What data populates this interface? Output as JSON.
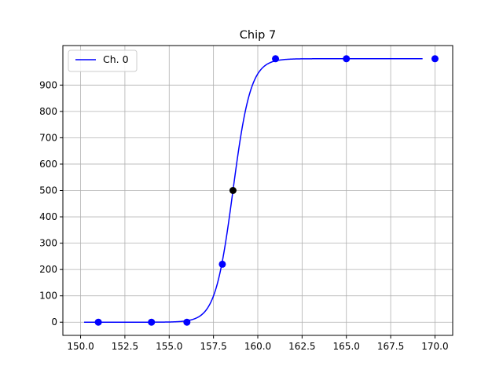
{
  "chart_data": {
    "type": "line",
    "title": "Chip 7",
    "xlabel": "",
    "ylabel": "",
    "xlim": [
      149.0,
      171.0
    ],
    "ylim": [
      -50,
      1050
    ],
    "xticks": [
      150.0,
      152.5,
      155.0,
      157.5,
      160.0,
      162.5,
      165.0,
      167.5,
      170.0
    ],
    "xtick_labels": [
      "150.0",
      "152.5",
      "155.0",
      "157.5",
      "160.0",
      "162.5",
      "165.0",
      "167.5",
      "170.0"
    ],
    "yticks": [
      0,
      100,
      200,
      300,
      400,
      500,
      600,
      700,
      800,
      900
    ],
    "ytick_labels": [
      "0",
      "100",
      "200",
      "300",
      "400",
      "500",
      "600",
      "700",
      "800",
      "900"
    ],
    "grid": true,
    "legend": {
      "position": "top-left",
      "entries": [
        "Ch. 0"
      ]
    },
    "series": [
      {
        "name": "Ch. 0",
        "kind": "sigmoid-fit",
        "color": "#0000ff",
        "x_range": [
          150.2,
          169.3
        ],
        "amplitude": 1000,
        "center": 158.6,
        "sigma": 0.5
      }
    ],
    "points": [
      {
        "x": 151.0,
        "y": 0,
        "color": "#0000ff"
      },
      {
        "x": 154.0,
        "y": 0,
        "color": "#0000ff"
      },
      {
        "x": 156.0,
        "y": 0,
        "color": "#0000ff"
      },
      {
        "x": 158.0,
        "y": 220,
        "color": "#0000ff"
      },
      {
        "x": 161.0,
        "y": 1000,
        "color": "#0000ff"
      },
      {
        "x": 165.0,
        "y": 1000,
        "color": "#0000ff"
      },
      {
        "x": 170.0,
        "y": 1000,
        "color": "#0000ff"
      }
    ],
    "highlight_point": {
      "x": 158.6,
      "y": 500,
      "color": "#000000"
    }
  }
}
